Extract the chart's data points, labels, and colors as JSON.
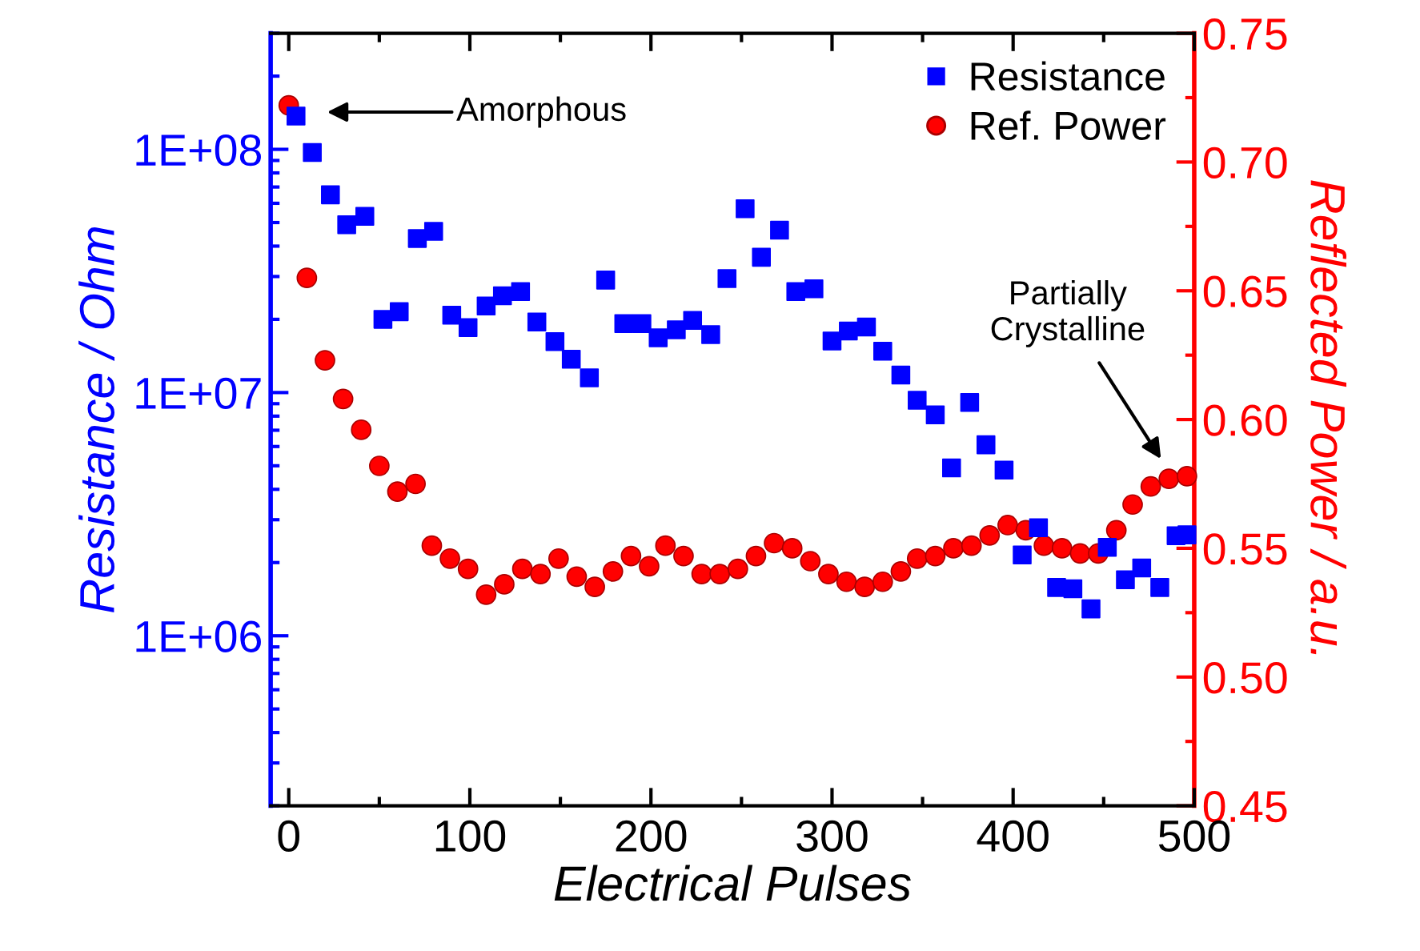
{
  "chart_data": {
    "type": "scatter",
    "xlabel": "Electrical Pulses",
    "ylabel": "Resistance / Ohm",
    "y2label": "Reflected Power / a.u.",
    "xlim": [
      -10,
      500
    ],
    "xticks": [
      0,
      100,
      200,
      300,
      400,
      500
    ],
    "log": "y",
    "ylim": [
      200000,
      300000000
    ],
    "yticks": [
      {
        "value": 1000000,
        "label": "1E+06"
      },
      {
        "value": 10000000,
        "label": "1E+07"
      },
      {
        "value": 100000000,
        "label": "1E+08"
      }
    ],
    "y2lim": [
      0.45,
      0.75
    ],
    "y2ticks": [
      0.45,
      {
        "value": 0.5,
        "label": "0.50"
      },
      0.55,
      {
        "value": 0.6,
        "label": "0.60"
      },
      0.65,
      {
        "value": 0.7,
        "label": "0.70"
      },
      0.75
    ],
    "grid": false,
    "legend": "top right",
    "series": [
      {
        "name": "Resistance",
        "color": "#0000ff",
        "marker": "square",
        "axis": "y",
        "x": [
          4,
          13,
          23,
          32,
          42,
          52,
          61,
          71,
          80,
          90,
          99,
          109,
          118,
          128,
          137,
          147,
          156,
          166,
          175,
          185,
          195,
          204,
          214,
          223,
          233,
          242,
          252,
          261,
          271,
          280,
          290,
          300,
          309,
          319,
          328,
          338,
          347,
          357,
          366,
          376,
          385,
          395,
          405,
          414,
          424,
          433,
          443,
          452,
          462,
          471,
          481,
          490,
          496
        ],
        "values": [
          137000000,
          97000000,
          65000000,
          49000000,
          53000000,
          20000000,
          21500000,
          43000000,
          46000000,
          20800000,
          18500000,
          22700000,
          25000000,
          26000000,
          19500000,
          16200000,
          13700000,
          11500000,
          29000000,
          19200000,
          19200000,
          16800000,
          18100000,
          19800000,
          17300000,
          29400000,
          57000000,
          36000000,
          46500000,
          26000000,
          26700000,
          16300000,
          17900000,
          18600000,
          14800000,
          11800000,
          9300000,
          8100000,
          4900000,
          9100000,
          6100000,
          4800000,
          2150000,
          2780000,
          1580000,
          1560000,
          1290000,
          2310000,
          1700000,
          1900000,
          1580000,
          2580000,
          2600000
        ]
      },
      {
        "name": "Ref. Power",
        "color": "#ff0000",
        "marker": "circle",
        "axis": "y2",
        "x": [
          0,
          10,
          20,
          30,
          40,
          50,
          60,
          70,
          79,
          89,
          99,
          109,
          119,
          129,
          139,
          149,
          159,
          169,
          179,
          189,
          199,
          208,
          218,
          228,
          238,
          248,
          258,
          268,
          278,
          288,
          298,
          308,
          318,
          328,
          338,
          347,
          357,
          367,
          377,
          387,
          397,
          407,
          417,
          427,
          437,
          447,
          457,
          466,
          476,
          486,
          496
        ],
        "values": [
          0.722,
          0.655,
          0.623,
          0.608,
          0.596,
          0.582,
          0.572,
          0.575,
          0.551,
          0.546,
          0.542,
          0.532,
          0.536,
          0.542,
          0.54,
          0.546,
          0.539,
          0.535,
          0.541,
          0.547,
          0.543,
          0.551,
          0.547,
          0.54,
          0.54,
          0.542,
          0.547,
          0.552,
          0.55,
          0.545,
          0.54,
          0.537,
          0.535,
          0.537,
          0.541,
          0.546,
          0.547,
          0.55,
          0.551,
          0.555,
          0.559,
          0.557,
          0.551,
          0.55,
          0.548,
          0.548,
          0.557,
          0.567,
          0.574,
          0.577,
          0.578
        ]
      }
    ],
    "annotations": [
      "Amorphous",
      "Partially\nCrystalline"
    ]
  }
}
